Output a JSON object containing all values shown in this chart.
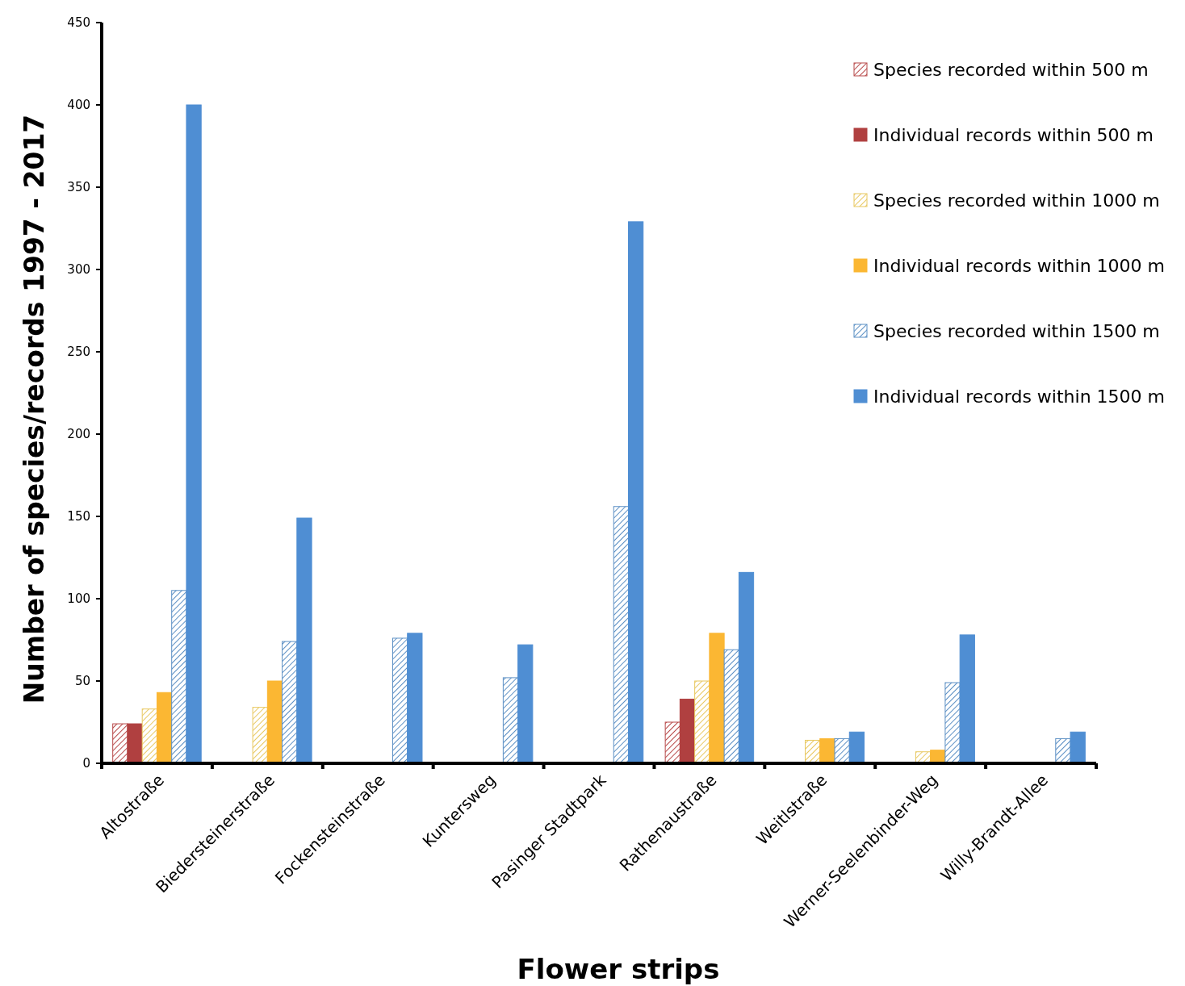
{
  "chart_data": {
    "type": "bar",
    "xlabel": "Flower strips",
    "ylabel": "Number of species/records  1997 - 2017",
    "categories": [
      "Altostraße",
      "Biedersteinerstraße",
      "Fockensteinstraße",
      "Kuntersweg",
      "Pasinger Stadtpark",
      "Rathenaustraße",
      "Weitlstraße",
      "Werner-Seelenbinder-Weg",
      "Willy-Brandt-Allee"
    ],
    "series": [
      {
        "name": "Species recorded within 500 m",
        "color": "#b84a4a",
        "values": [
          24,
          null,
          null,
          null,
          null,
          25,
          null,
          null,
          null
        ]
      },
      {
        "name": "Individual records within 500 m",
        "color": "#b04040",
        "values": [
          24,
          null,
          null,
          null,
          null,
          39,
          null,
          null,
          null
        ]
      },
      {
        "name": "Species recorded within 1000 m",
        "color": "#e8c860",
        "values": [
          33,
          34,
          null,
          null,
          null,
          50,
          14,
          7,
          null
        ]
      },
      {
        "name": "Individual records within 1000 m",
        "color": "#fbb733",
        "values": [
          43,
          50,
          null,
          null,
          null,
          79,
          15,
          8,
          null
        ]
      },
      {
        "name": "Species recorded within 1500 m",
        "color": "#5b8fc4",
        "values": [
          105,
          74,
          76,
          52,
          156,
          69,
          15,
          49,
          15
        ]
      },
      {
        "name": "Individual records within 1500 m",
        "color": "#4f8ed3",
        "values": [
          400,
          149,
          79,
          72,
          329,
          116,
          19,
          78,
          19
        ]
      }
    ],
    "ylim": [
      0,
      450
    ],
    "yticks": [
      0,
      50,
      100,
      150,
      200,
      250,
      300,
      350,
      400,
      450
    ],
    "grid": false,
    "legend": "top right"
  }
}
